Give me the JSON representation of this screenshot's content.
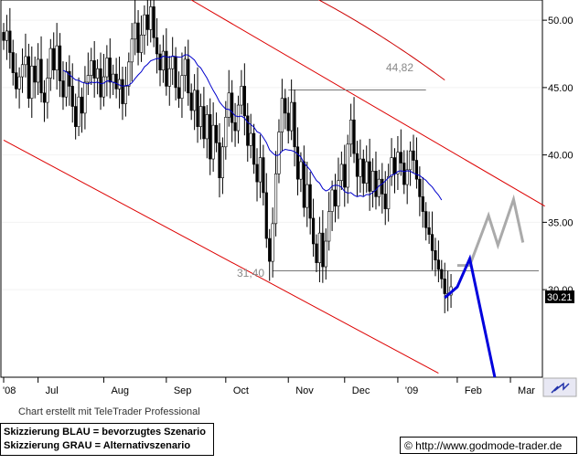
{
  "chart_data": {
    "type": "candlestick",
    "y_axis": {
      "ticks": [
        "30.00",
        "35.00",
        "40.00",
        "45.00",
        "50.00"
      ],
      "ylim": [
        23.5,
        51.5
      ],
      "side": "right"
    },
    "x_axis": {
      "labels": [
        "'08",
        "Jul",
        "Aug",
        "Sep",
        "Oct",
        "Nov",
        "Dec",
        "'09",
        "Feb",
        "Mar"
      ]
    },
    "last_price": "30.21",
    "annotations": {
      "resistance_label": "44,82",
      "support_label": "31,40",
      "resistance": 44.82,
      "support": 31.4
    },
    "close_series": [
      48.5,
      49.2,
      47.6,
      46.1,
      44.9,
      45.8,
      46.7,
      47.3,
      44.2,
      46.6,
      45.4,
      47.1,
      44.6,
      43.9,
      45.7,
      47.9,
      46.3,
      48.1,
      45.5,
      44.3,
      46.2,
      45.1,
      43.6,
      42.1,
      44.3,
      43.1,
      45.4,
      45.9,
      47.0,
      45.7,
      46.4,
      44.3,
      45.8,
      47.2,
      45.4,
      46.0,
      44.9,
      45.6,
      43.8,
      45.1,
      46.9,
      48.6,
      49.8,
      47.6,
      48.9,
      50.4,
      49.3,
      51.0,
      48.7,
      47.5,
      46.3,
      47.7,
      45.1,
      46.4,
      47.3,
      45.0,
      44.2,
      45.9,
      47.1,
      44.6,
      43.3,
      44.8,
      42.1,
      43.6,
      41.2,
      43.0,
      39.7,
      42.2,
      40.9,
      38.3,
      40.6,
      42.8,
      44.6,
      42.4,
      41.8,
      43.7,
      45.1,
      42.9,
      40.7,
      41.6,
      39.3,
      38.0,
      39.8,
      37.2,
      33.8,
      32.1,
      34.9,
      38.6,
      41.7,
      44.2,
      43.1,
      41.8,
      43.9,
      40.6,
      38.2,
      39.5,
      36.1,
      37.8,
      35.3,
      33.4,
      32.0,
      34.2,
      31.7,
      33.6,
      35.8,
      37.4,
      36.2,
      38.1,
      39.3,
      37.6,
      40.8,
      42.6,
      40.1,
      38.4,
      39.7,
      37.9,
      39.5,
      37.3,
      38.8,
      36.9,
      38.2,
      37.1,
      36.0,
      38.4,
      39.8,
      38.6,
      40.2,
      39.4,
      37.8,
      38.9,
      40.3,
      39.6,
      38.2,
      36.9,
      35.8,
      34.6,
      34.1,
      32.9,
      32.2,
      31.5,
      30.8,
      29.7,
      29.6,
      30.21
    ],
    "series": [
      {
        "name": "",
        "type": "moving-average",
        "color": "#0000cc"
      },
      {
        "name": "",
        "type": "moving-average",
        "color": "#cc0000"
      },
      {
        "name": "",
        "type": "forecast-path",
        "color": "#0000dd",
        "points": [
          [
            141,
            29.4
          ],
          [
            145,
            30.2
          ],
          [
            149,
            32.3
          ],
          [
            157,
            23.5
          ]
        ]
      },
      {
        "name": "",
        "type": "forecast-path",
        "color": "#aaaaaa",
        "points": [
          [
            145,
            31.8
          ],
          [
            149,
            31.8
          ],
          [
            155,
            35.5
          ],
          [
            158,
            33.3
          ],
          [
            163,
            36.7
          ],
          [
            166,
            33.5
          ]
        ]
      }
    ],
    "channel": {
      "upper": [
        [
          60,
          51.5
        ],
        [
          173,
          36.2
        ]
      ],
      "lower": [
        [
          0,
          41.1
        ],
        [
          139,
          23.8
        ]
      ]
    }
  },
  "footer": {
    "credit": "Chart erstellt mit TeleTrader Professional",
    "legend_blue": "Skizzierung BLAU = bevorzugtes Szenario",
    "legend_grau": "Skizzierung GRAU = Alternativszenario",
    "url": "© http://www.godmode-trader.de"
  }
}
